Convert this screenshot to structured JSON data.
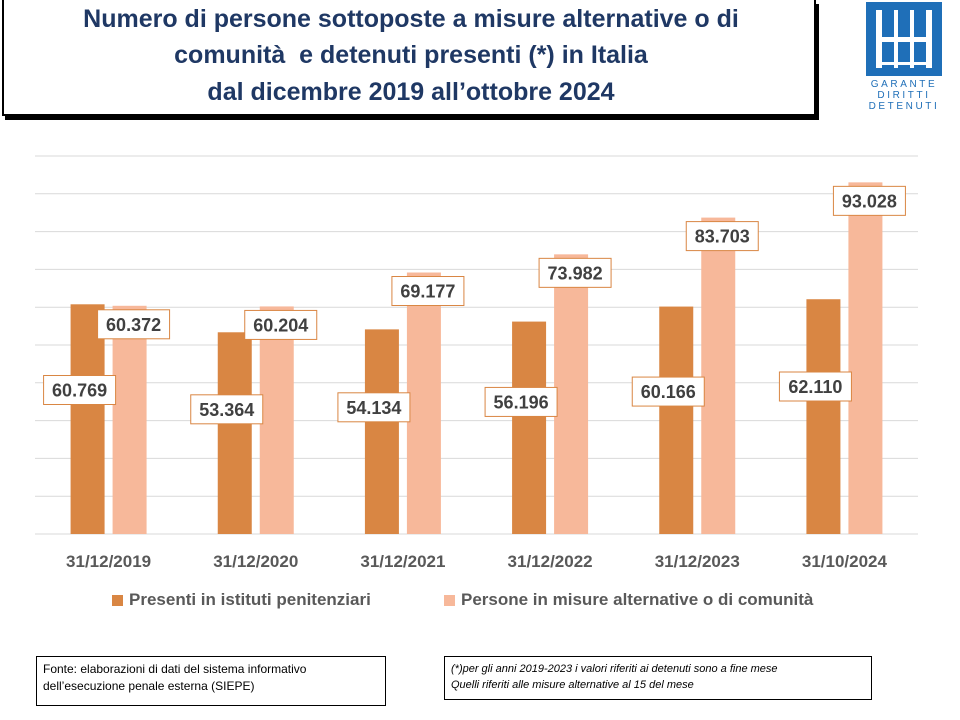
{
  "title": {
    "lines": [
      "Numero di persone sottoposte a misure alternative o di",
      "comunità  e detenuti presenti (*) in Italia",
      "dal dicembre 2019 all’ottobre 2024"
    ]
  },
  "logo": {
    "lines": [
      "GARANTE",
      "DIRITTI",
      "DETENUTI"
    ]
  },
  "colors": {
    "title": "#1F3864",
    "presenti": "#D98643",
    "misure": "#F7B89A",
    "label_border": "#D98643",
    "gridline": "#D9D9D9",
    "logo": "#1F6FB8"
  },
  "chart_data": {
    "type": "bar",
    "categories": [
      "31/12/2019",
      "31/12/2020",
      "31/12/2021",
      "31/12/2022",
      "31/12/2023",
      "31/10/2024"
    ],
    "series": [
      {
        "name": "Presenti in istituti penitenziari",
        "values": [
          60769,
          53364,
          54134,
          56196,
          60166,
          62110
        ],
        "labels": [
          "60.769",
          "53.364",
          "54.134",
          "56.196",
          "60.166",
          "62.110"
        ]
      },
      {
        "name": "Persone in misure alternative o di comunità",
        "values": [
          60372,
          60204,
          69177,
          73982,
          83703,
          93028
        ],
        "labels": [
          "60.372",
          "60.204",
          "69.177",
          "73.982",
          "83.703",
          "93.028"
        ]
      }
    ],
    "ylim": [
      0,
      100000
    ],
    "grid": true,
    "legend_position": "bottom"
  },
  "notes": {
    "fonte": [
      "Fonte: elaborazioni di dati del sistema informativo",
      "dell’esecuzione penale esterna (SIEPE)"
    ],
    "footnote": [
      "(*)per gli anni 2019-2023  i valori riferiti ai detenuti sono a fine mese",
      "Quelli riferiti alle misure alternative al 15 del mese"
    ]
  }
}
